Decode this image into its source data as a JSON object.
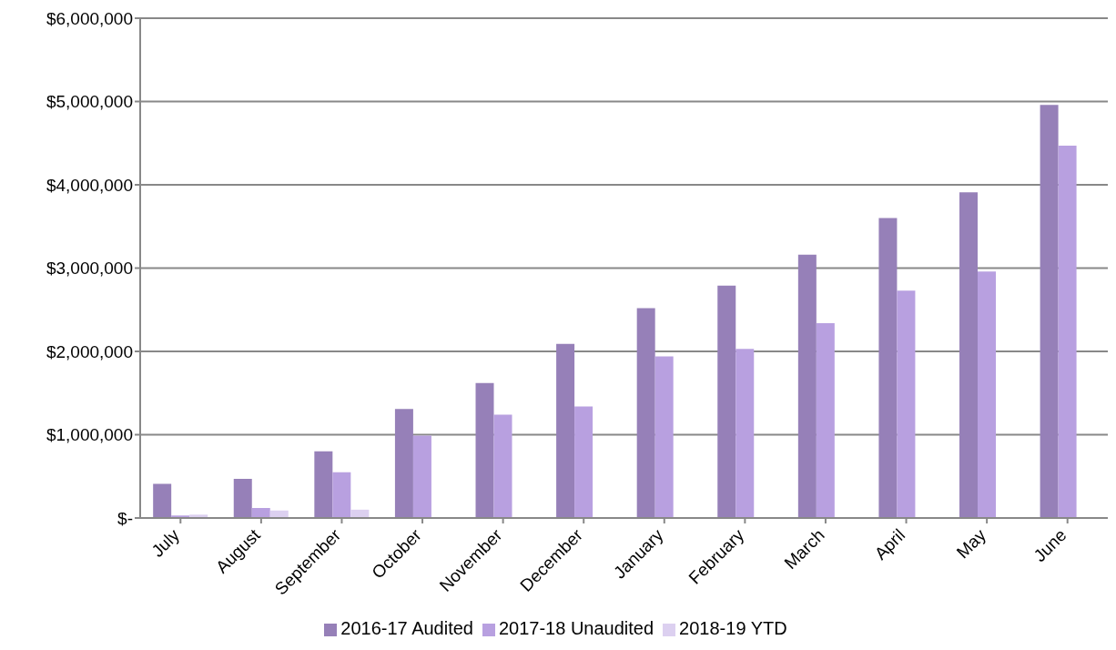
{
  "chart_data": {
    "type": "bar",
    "categories": [
      "July",
      "August",
      "September",
      "October",
      "November",
      "December",
      "January",
      "February",
      "March",
      "April",
      "May",
      "June"
    ],
    "series": [
      {
        "name": "2016-17 Audited",
        "color": "#9680b8",
        "values": [
          410000,
          470000,
          800000,
          1310000,
          1620000,
          2090000,
          2520000,
          2790000,
          3160000,
          3600000,
          3910000,
          4960000
        ]
      },
      {
        "name": "2017-18 Unaudited",
        "color": "#b8a0e0",
        "values": [
          30000,
          120000,
          550000,
          990000,
          1240000,
          1340000,
          1940000,
          2030000,
          2340000,
          2730000,
          2960000,
          4470000
        ]
      },
      {
        "name": "2018-19 YTD",
        "color": "#dcd0f0",
        "values": [
          40000,
          90000,
          100000,
          null,
          null,
          null,
          null,
          null,
          null,
          null,
          null,
          null
        ]
      }
    ],
    "ylim": [
      0,
      6000000
    ],
    "yticks": [
      {
        "value": 0,
        "label": "$-"
      },
      {
        "value": 1000000,
        "label": "$1,000,000"
      },
      {
        "value": 2000000,
        "label": "$2,000,000"
      },
      {
        "value": 3000000,
        "label": "$3,000,000"
      },
      {
        "value": 4000000,
        "label": "$4,000,000"
      },
      {
        "value": 5000000,
        "label": "$5,000,000"
      },
      {
        "value": 6000000,
        "label": "$6,000,000"
      }
    ],
    "grid": "y",
    "legend": "bottom"
  }
}
